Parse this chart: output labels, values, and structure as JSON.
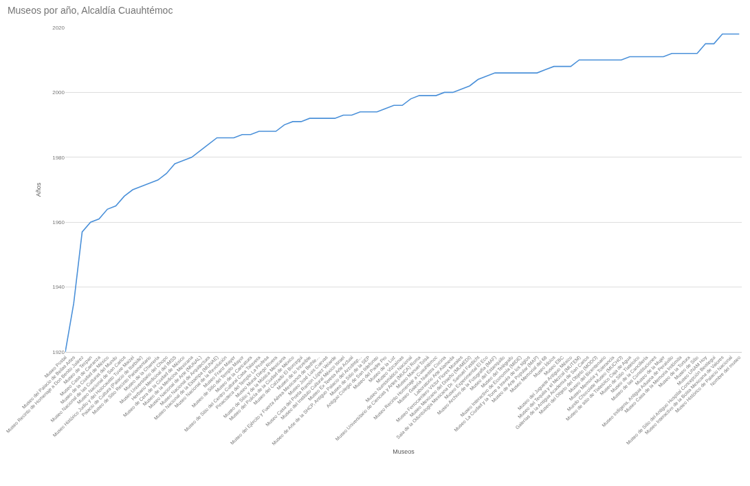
{
  "chart_data": {
    "type": "line",
    "title": "Museos por año, Alcaldía Cuauhtémoc",
    "xlabel": "Museos",
    "ylabel": "Años",
    "categories": [
      "Museo Postal",
      "Museo del Palacio de Bellas Artes",
      "Museo Recinto de Homenaje a Don Benito Juárez",
      "Museo de Tecpan",
      "Museo Casa de Carranza",
      "Museo de la Ciudad de México",
      "Museo Nacional de las Culturas del Mundo",
      "Museo Nacional de San Carlos",
      "Museo Histórico Judío y del Holocausto Tuvie Maizel",
      "Palacio de Cultura (Palacio de Iturbide)",
      "Museo de Sitio Recinto Parlamentario",
      "Museo de la Charrería",
      "Museo Universitario del Chopo",
      "Herbario Medicinal del IMSS",
      "Museo de Cera de la Ciudad de México",
      "Museo de la Medicina Mexicana",
      "Museo Nacional de Arte (MUNAL)",
      "Museo Nacional de Arquitectura",
      "Museo Nacional de la Estampa (MUNAE)",
      "Museo Nacional de la Revolución",
      "Museo Franz Mayer",
      "Museo de Sitio del Templo Mayor",
      "Museo de la Caricatura",
      "Museo de Sitio del Centro Cultural Casa Talavera",
      "Pinacoteca del Templo La Profesa",
      "Museo Mural Diego Rivera",
      "Museo de Sitio y de la Música Mexicana",
      "Museo del Policía de la Ciudad de México",
      "Museo del Calzado El Borcegui",
      "Museo de lo Increíble",
      "Museo del Ejército y Fuerza Aérea Mexicanos de Bethle...",
      "Museo José Luis Cuevas",
      "Museo Casa del Poeta Ramón López Velarde",
      "Museo del Instituto Cultural México Israel",
      "Museo Ex Teresa Arte Actual",
      "Museo de Arte de la SHCP, Antiguo Palacio del Arzobisp...",
      "Museo de Sitio de la SEP",
      "Antiguo Colegio de San Ildefonso",
      "Museo del Padre Pro",
      "Museo de la Luz",
      "Museo Vizcaínas",
      "Museo Numismático Nacional",
      "Museo Universitario de Ciencias y Artes (MUCA) Roma",
      "Museo Manuel Tolsá",
      "Museo Recinto Homenaje a Cuauhtémoc",
      "Museo Galería Nuestra Cocina",
      "Laboratorio Arte Alameda",
      "Museo Ferrocarrilero Víctor Flores Morales",
      "Museo Mexicano del Diseño (MUMEDI)",
      "Sala de la Odontología Mexicana Dr. Samuel Fastlicht",
      "Museo Experimental El Eco",
      "Museo Archivo de la Fotografía (MAF)",
      "Museo del Estanquillo",
      "Museo del Telégrafo",
      "Museo Interactivo de Economía (MIDE)",
      "Museo La Ciudad y la Torre a través de los siglos",
      "Museo de Arte Popular (MAP)",
      "Museo Memorial del 68",
      "Museo Ídolos",
      "Museo EBC",
      "Museo del Juguete Antiguo México",
      "Museo del Tequila y el Mezcal (MUTEM)",
      "Galerías de la Antigua Academia de San Carlos",
      "Museo del Objeto del Objeto (MODO)",
      "Museo del Bicentenario",
      "Museo Memoria y Tolerancia",
      "Mundo Chocolate Museo (MUCHO)",
      "Museo de sitio de Tlatelolco Caja de Agua",
      "Museo de Sitio Tlatelolco",
      "Museo de la Cancillería",
      "Museo de las Constituciones",
      "Museo de la Mujer",
      "Museo Indígena, Antigua Aduana de Peralvillo",
      "Museo Casa de la Memoria Indómita",
      "Museo de la Tortura",
      "Museo de Sitio",
      "Museo UNAM Hoy",
      "Museo de Sitio del Antiguo Hospital Concepción Beistegui",
      "Museo Interactivo de la Bolsa Mexicana de Valores",
      "Museo Histórico de Palacio Nacional",
      "Nombre del museo"
    ],
    "series": [
      {
        "color": "#4a90d9",
        "values": [
          1920,
          1935,
          1957,
          1960,
          1961,
          1964,
          1965,
          1968,
          1970,
          1971,
          1972,
          1973,
          1975,
          1978,
          1979,
          1980,
          1982,
          1984,
          1986,
          1986,
          1986,
          1987,
          1987,
          1988,
          1988,
          1988,
          1990,
          1991,
          1991,
          1992,
          1992,
          1992,
          1992,
          1993,
          1993,
          1994,
          1994,
          1994,
          1995,
          1996,
          1996,
          1998,
          1999,
          1999,
          1999,
          2000,
          2000,
          2001,
          2002,
          2004,
          2005,
          2006,
          2006,
          2006,
          2006,
          2006,
          2006,
          2007,
          2008,
          2008,
          2008,
          2010,
          2010,
          2010,
          2010,
          2010,
          2010,
          2011,
          2011,
          2011,
          2011,
          2011,
          2012,
          2012,
          2012,
          2012,
          2015,
          2015,
          2018,
          2018,
          2018
        ]
      }
    ],
    "ylim": [
      1920,
      2020
    ],
    "yticks": [
      1920,
      1940,
      1960,
      1980,
      2000,
      2020
    ],
    "grid": "y",
    "marker": "none",
    "line_style": "solid"
  }
}
